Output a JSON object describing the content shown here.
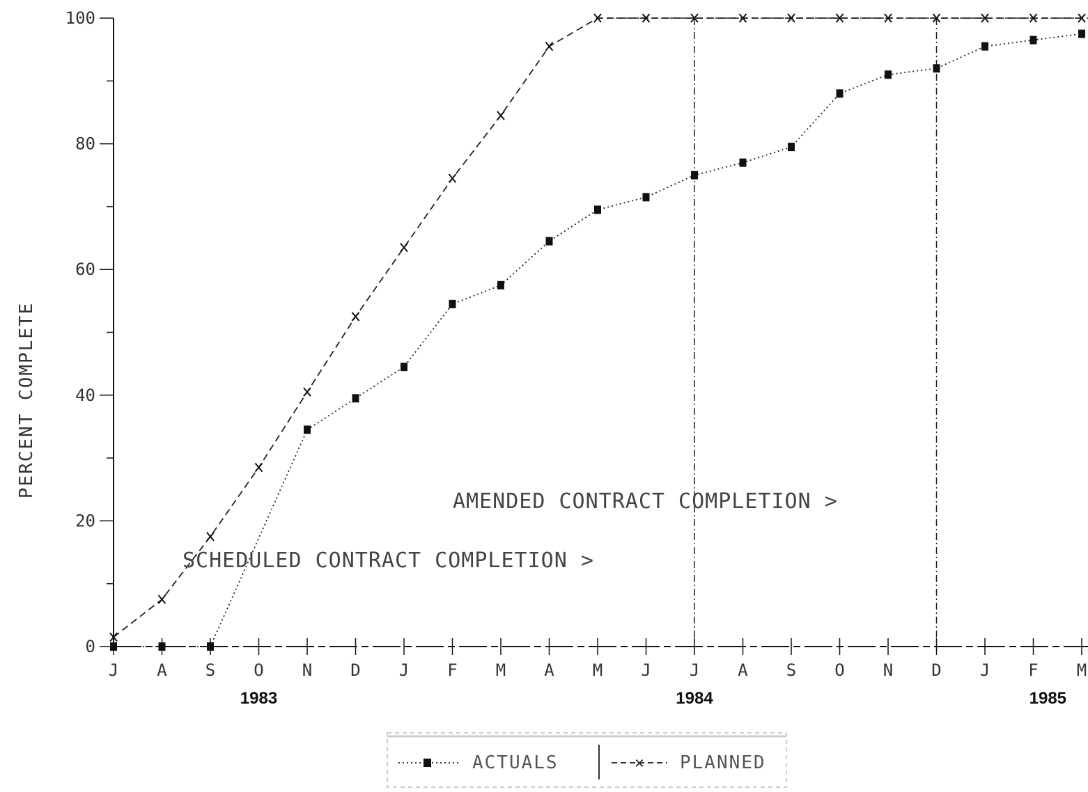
{
  "chart_data": {
    "type": "line",
    "ylabel": "PERCENT COMPLETE",
    "ylim": [
      0,
      100
    ],
    "yticks": [
      0,
      20,
      40,
      60,
      80,
      100
    ],
    "ytick_labels": [
      "0",
      "20",
      "40",
      "60",
      "80",
      "100"
    ],
    "categories": [
      "J",
      "A",
      "S",
      "O",
      "N",
      "D",
      "J",
      "F",
      "M",
      "A",
      "M",
      "J",
      "J",
      "A",
      "S",
      "O",
      "N",
      "D",
      "J",
      "F",
      "M"
    ],
    "years": [
      {
        "label": "1983",
        "index": 3
      },
      {
        "label": "1984",
        "index": 12
      },
      {
        "label": "1985",
        "index": 19.3
      }
    ],
    "series": [
      {
        "name": "ACTUALS",
        "marker": "square",
        "linestyle": "dotted",
        "values": [
          0,
          0,
          0,
          null,
          34.5,
          39.5,
          44.5,
          54.5,
          57.5,
          64.5,
          69.5,
          71.5,
          75,
          77,
          79.5,
          88,
          91,
          92,
          95.5,
          96.5,
          97.5
        ]
      },
      {
        "name": "PLANNED",
        "marker": "x",
        "linestyle": "dashed",
        "values": [
          1.5,
          7.5,
          17.5,
          28.5,
          40.5,
          52.5,
          63.5,
          74.5,
          84.5,
          95.5,
          100,
          100,
          100,
          100,
          100,
          100,
          100,
          100,
          100,
          100,
          100
        ]
      }
    ],
    "vlines": [
      {
        "index": 12,
        "label": "AMENDED CONTRACT COMPLETION >"
      },
      {
        "index": 17,
        "label": ""
      }
    ],
    "annotations": [
      {
        "text": "AMENDED CONTRACT COMPLETION >"
      },
      {
        "text": "SCHEDULED CONTRACT COMPLETION >"
      }
    ],
    "legend": {
      "position": "bottom-center",
      "entries": [
        "ACTUALS",
        "PLANNED"
      ]
    },
    "grid": false
  }
}
